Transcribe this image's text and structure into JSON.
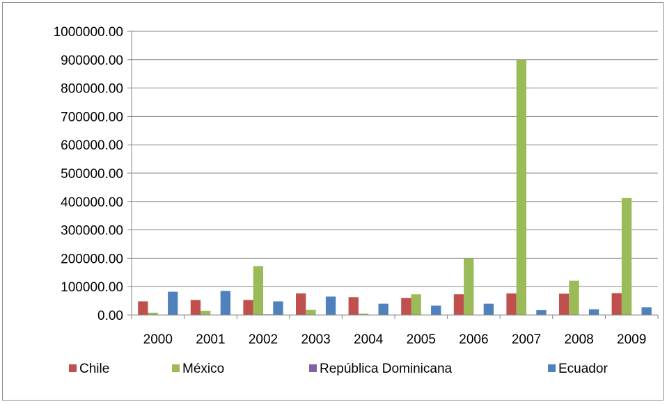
{
  "chart_data": {
    "type": "bar",
    "title": "",
    "xlabel": "",
    "ylabel": "",
    "categories": [
      "2000",
      "2001",
      "2002",
      "2003",
      "2004",
      "2005",
      "2006",
      "2007",
      "2008",
      "2009"
    ],
    "ylim": [
      0,
      1000000
    ],
    "yticks": [
      0,
      100000,
      200000,
      300000,
      400000,
      500000,
      600000,
      700000,
      800000,
      900000,
      1000000
    ],
    "ytick_labels": [
      "0.00",
      "100000.00",
      "200000.00",
      "300000.00",
      "400000.00",
      "500000.00",
      "600000.00",
      "700000.00",
      "800000.00",
      "900000.00",
      "1000000.00"
    ],
    "grid": true,
    "legend_position": "bottom",
    "series": [
      {
        "name": "Chile",
        "color": "#c0504d",
        "values": [
          48000,
          53000,
          53000,
          76000,
          63000,
          60000,
          73000,
          76000,
          75000,
          77000
        ]
      },
      {
        "name": "México",
        "color": "#9bbb59",
        "values": [
          8000,
          15000,
          172000,
          18000,
          5000,
          73000,
          200000,
          900000,
          121000,
          412000
        ]
      },
      {
        "name": "República Dominicana",
        "color": "#8064a2",
        "values": [
          500,
          500,
          2000,
          500,
          500,
          500,
          500,
          500,
          1000,
          500
        ]
      },
      {
        "name": "Ecuador",
        "color": "#4f81bd",
        "values": [
          82000,
          85000,
          48000,
          65000,
          40000,
          33000,
          40000,
          17000,
          20000,
          27000
        ]
      }
    ]
  }
}
